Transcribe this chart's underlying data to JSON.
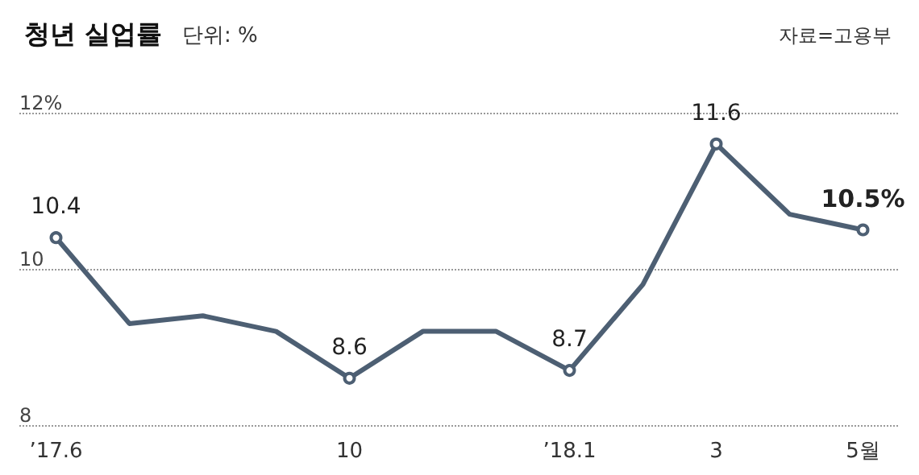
{
  "chart_data": {
    "type": "line",
    "title": "청년 실업률",
    "subtitle": "단위: %",
    "annotations": [
      "자료=고용부"
    ],
    "categories": [
      "’17.6",
      null,
      null,
      null,
      "10",
      null,
      null,
      "’18.1",
      null,
      "3",
      null,
      "5월"
    ],
    "series": [
      {
        "color": "#4d5f73",
        "values": [
          10.4,
          9.3,
          9.4,
          9.2,
          8.6,
          9.2,
          9.2,
          8.7,
          9.8,
          11.6,
          10.7,
          10.5
        ],
        "value_labels": [
          "10.4",
          null,
          null,
          null,
          "8.6",
          null,
          null,
          "8.7",
          null,
          "11.6",
          null,
          "10.5%"
        ]
      }
    ],
    "ylim": [
      8,
      12
    ],
    "yticks": [
      8,
      10,
      {
        "value": 12,
        "label": "12%"
      }
    ],
    "grid": "y"
  }
}
